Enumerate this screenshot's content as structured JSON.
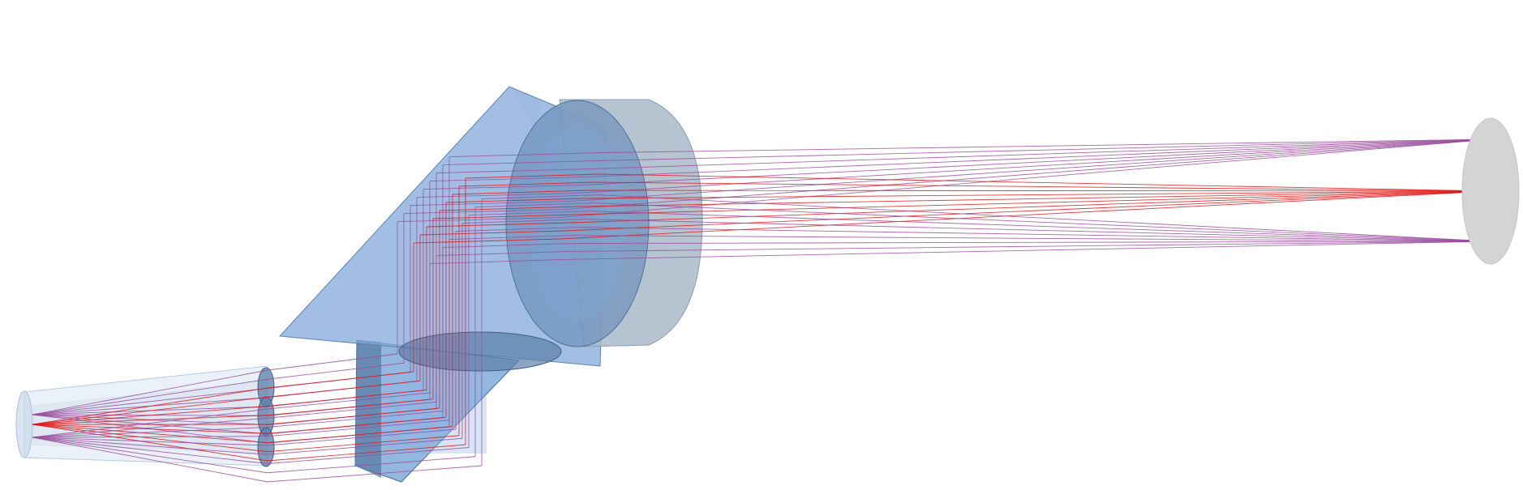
{
  "scene": {
    "background": "#ffffff",
    "colors": {
      "glass": "#7ea6d8",
      "glass_dark": "#5b7fa8",
      "glass_edge": "#4a6c94",
      "detector": "#d4d4d4",
      "ray_center": "#e01818",
      "ray_off_axis": "#9a4c9c",
      "fiber": "#c9d9ea"
    },
    "components": [
      "fiber-bundle",
      "microlens-array",
      "beam-splitter-cube",
      "fold-prism",
      "collimator-lens",
      "detector-plane"
    ],
    "ray_groups": [
      {
        "color": "#9a4c9c",
        "field": "top"
      },
      {
        "color": "#e01818",
        "field": "center"
      },
      {
        "color": "#9a4c9c",
        "field": "bottom"
      }
    ]
  }
}
